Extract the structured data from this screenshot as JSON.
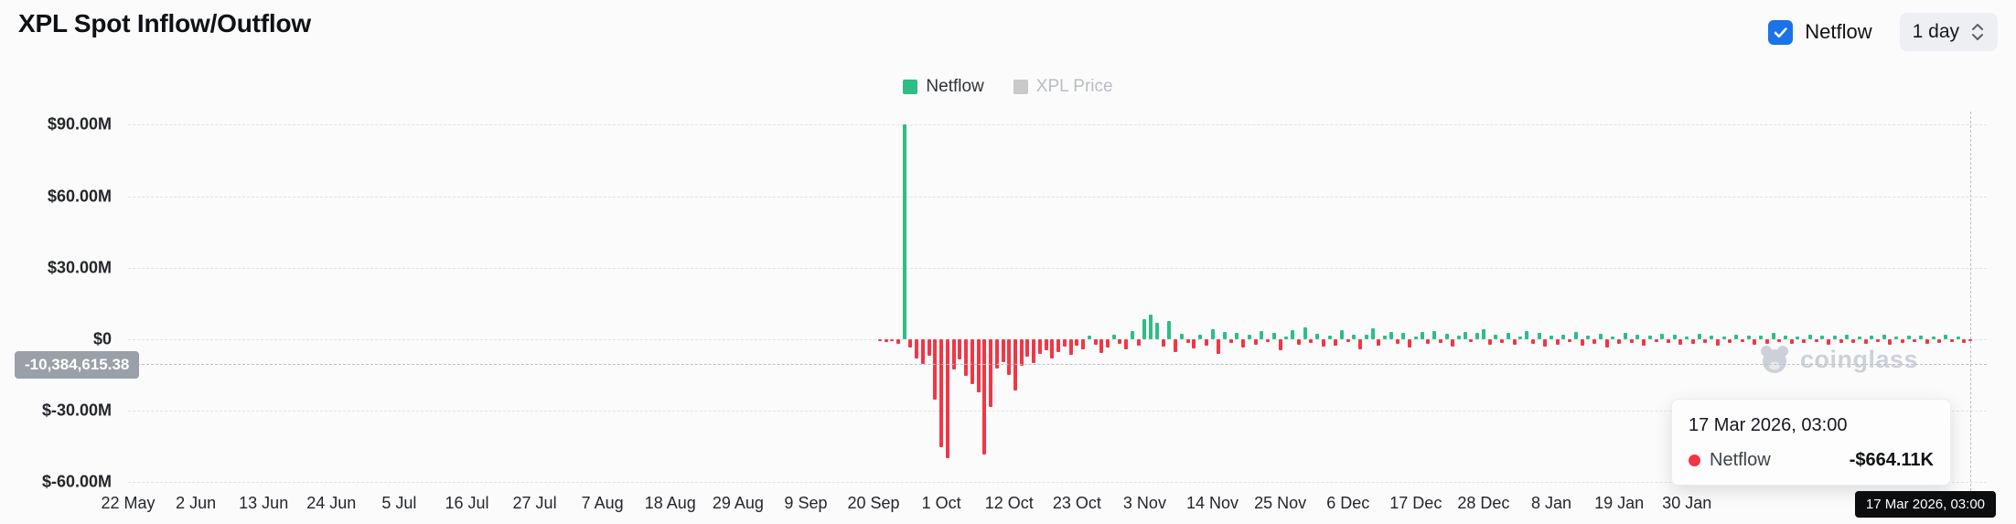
{
  "header": {
    "title": "XPL Spot Inflow/Outflow",
    "netflow_toggle": {
      "label": "Netflow",
      "checked": true
    },
    "interval": "1 day"
  },
  "legend": [
    {
      "label": "Netflow",
      "color": "#2ebd85",
      "active": true
    },
    {
      "label": "XPL Price",
      "color": "#c9c9c9",
      "active": false
    }
  ],
  "crosshair": {
    "y_label": "-10,384,615.38",
    "x_label": "17 Mar 2026, 03:00"
  },
  "tooltip": {
    "title": "17 Mar 2026, 03:00",
    "rows": [
      {
        "series": "Netflow",
        "value": "-$664.11K",
        "marker_color": "#f23645"
      }
    ]
  },
  "watermark": "coinglass",
  "colors": {
    "positive": "#2ebd85",
    "negative": "#f23645",
    "checkbox_blue": "#1a73e8",
    "inactive_gray": "#c9c9c9"
  },
  "chart_data": {
    "type": "bar",
    "title": "XPL Spot Inflow/Outflow",
    "series_name": "Netflow",
    "unit": "USD millions",
    "y_ticks": [
      "$90.00M",
      "$60.00M",
      "$30.00M",
      "$0",
      "$-30.00M",
      "$-60.00M"
    ],
    "y_tick_values": [
      90,
      60,
      30,
      0,
      -30,
      -60
    ],
    "ylim": [
      -60,
      90
    ],
    "x_ticks": [
      "22 May",
      "2 Jun",
      "13 Jun",
      "24 Jun",
      "5 Jul",
      "16 Jul",
      "27 Jul",
      "7 Aug",
      "18 Aug",
      "29 Aug",
      "9 Sep",
      "20 Sep",
      "1 Oct",
      "12 Oct",
      "23 Oct",
      "3 Nov",
      "14 Nov",
      "25 Nov",
      "6 Dec",
      "17 Dec",
      "28 Dec",
      "8 Jan",
      "19 Jan",
      "30 Jan"
    ],
    "x_tick_interval_days": 11,
    "data_start_date": "21 Sep 2025",
    "data_end_date": "17 Mar 2026",
    "grid": "dashed-horizontal",
    "legend_position": "top-center",
    "values_musd": [
      -0.5,
      -1.2,
      -0.8,
      -2.0,
      90.0,
      -3.5,
      -8.2,
      -10.5,
      -6.8,
      -25.4,
      -45.2,
      -49.8,
      -12.6,
      -8.4,
      -15.2,
      -18.9,
      -22.4,
      -48.2,
      -28.3,
      -12.1,
      -9.5,
      -14.8,
      -21.6,
      -11.2,
      -7.4,
      -9.8,
      -6.2,
      -4.5,
      -8.1,
      -5.3,
      -3.2,
      -6.7,
      -2.8,
      -4.1,
      1.5,
      -2.3,
      -5.6,
      -3.4,
      2.1,
      -1.8,
      -4.2,
      3.6,
      -2.5,
      8.4,
      10.2,
      6.8,
      -3.1,
      7.5,
      -5.2,
      2.4,
      -1.6,
      -3.8,
      1.9,
      -2.7,
      4.2,
      -6.3,
      3.1,
      -1.4,
      2.6,
      -3.5,
      1.8,
      -2.2,
      3.4,
      -1.1,
      2.8,
      -4.6,
      1.2,
      3.9,
      -2.4,
      5.1,
      -1.7,
      2.3,
      -3.2,
      1.6,
      -2.8,
      3.7,
      -1.3,
      2.1,
      -4.1,
      1.8,
      4.6,
      -2.6,
      1.4,
      3.2,
      -1.9,
      2.7,
      -3.6,
      1.1,
      2.9,
      -2.1,
      3.5,
      -1.5,
      2.2,
      -2.9,
      1.7,
      3.1,
      -1.2,
      2.5,
      4.2,
      -2.3,
      1.9,
      -1.6,
      2.8,
      -2.2,
      1.3,
      3.4,
      -1.8,
      2.6,
      -3.1,
      1.5,
      -2.4,
      2.1,
      -1.3,
      3.2,
      -2.7,
      1.6,
      -1.9,
      2.4,
      -3.3,
      1.2,
      -2.1,
      2.7,
      -1.5,
      1.8,
      -2.6,
      1.4,
      -1.1,
      2.3,
      -1.7,
      1.9,
      -2.4,
      1.1,
      -1.8,
      2.2,
      -1.4,
      1.6,
      -2.8,
      1.3,
      -1.6,
      2.1,
      -1.2,
      1.7,
      -2.3,
      1.4,
      -1.8,
      2.6,
      -1.3,
      1.5,
      -2.1,
      1.2,
      -1.6,
      1.9,
      -1.1,
      1.4,
      -2.2,
      1.6,
      -1.4,
      2.0,
      -1.7,
      1.3,
      -1.9,
      1.5,
      -1.2,
      1.8,
      -2.4,
      1.1,
      -1.5,
      1.7,
      -1.3,
      1.4,
      -1.8,
      1.2,
      -1.6,
      1.9,
      -1.1,
      1.3,
      -1.5,
      -0.66411
    ],
    "last_point": {
      "date": "17 Mar 2026, 03:00",
      "value_usd": "-$664.11K"
    }
  }
}
